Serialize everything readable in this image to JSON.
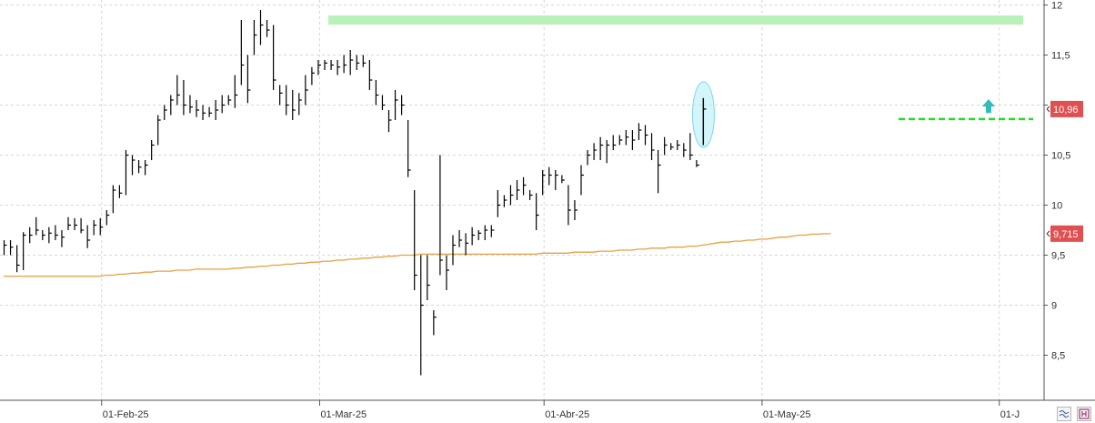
{
  "chart_data": {
    "type": "ohlc",
    "title": "",
    "xlabel": "",
    "ylabel": "",
    "ylim": [
      8.05,
      12.05
    ],
    "y_ticks": [
      "12",
      "11,5",
      "11",
      "10,5",
      "10",
      "9,5",
      "9",
      "8,5"
    ],
    "y_tick_values": [
      12,
      11.5,
      11,
      10.5,
      10,
      9.5,
      9,
      8.5
    ],
    "x_ticks": [
      "01-Feb-25",
      "01-Mar-25",
      "01-Abr-25",
      "01-May-25",
      "01-J"
    ],
    "x_tick_index": [
      15,
      49,
      84,
      118,
      155
    ],
    "grid": true,
    "colors": {
      "price_bar": "#000000",
      "moving_average": "#e8a040",
      "resistance_band": "#b8f2b8",
      "support_line": "#22dd22",
      "price_tag": "#e05050",
      "highlight_ellipse": "#b0eef8",
      "arrow": "#33bbbb",
      "grid": "#d6d6d6",
      "axis": "#555555"
    },
    "price_tags": [
      {
        "label": "10,96",
        "value": 10.96
      },
      {
        "label": "9,715",
        "value": 9.715
      }
    ],
    "resistance_band": {
      "from": 11.85,
      "to": 11.95
    },
    "support_line": {
      "value": 10.86
    },
    "bars": [
      {
        "h": 9.65,
        "l": 9.5,
        "c": 9.6
      },
      {
        "h": 9.65,
        "l": 9.5,
        "c": 9.58
      },
      {
        "h": 9.6,
        "l": 9.33,
        "c": 9.4
      },
      {
        "h": 9.73,
        "l": 9.35,
        "c": 9.7
      },
      {
        "h": 9.78,
        "l": 9.62,
        "c": 9.7
      },
      {
        "h": 9.88,
        "l": 9.7,
        "c": 9.75
      },
      {
        "h": 9.75,
        "l": 9.65,
        "c": 9.7
      },
      {
        "h": 9.78,
        "l": 9.62,
        "c": 9.72
      },
      {
        "h": 9.8,
        "l": 9.65,
        "c": 9.7
      },
      {
        "h": 9.75,
        "l": 9.58,
        "c": 9.68
      },
      {
        "h": 9.88,
        "l": 9.75,
        "c": 9.8
      },
      {
        "h": 9.87,
        "l": 9.75,
        "c": 9.8
      },
      {
        "h": 9.87,
        "l": 9.72,
        "c": 9.75
      },
      {
        "h": 9.8,
        "l": 9.57,
        "c": 9.65
      },
      {
        "h": 9.85,
        "l": 9.7,
        "c": 9.8
      },
      {
        "h": 9.87,
        "l": 9.7,
        "c": 9.78
      },
      {
        "h": 9.95,
        "l": 9.8,
        "c": 9.9
      },
      {
        "h": 10.2,
        "l": 9.92,
        "c": 10.15
      },
      {
        "h": 10.2,
        "l": 10.07,
        "c": 10.12
      },
      {
        "h": 10.55,
        "l": 10.1,
        "c": 10.5
      },
      {
        "h": 10.5,
        "l": 10.3,
        "c": 10.45
      },
      {
        "h": 10.45,
        "l": 10.32,
        "c": 10.38
      },
      {
        "h": 10.45,
        "l": 10.3,
        "c": 10.4
      },
      {
        "h": 10.65,
        "l": 10.45,
        "c": 10.6
      },
      {
        "h": 10.9,
        "l": 10.6,
        "c": 10.85
      },
      {
        "h": 11.0,
        "l": 10.85,
        "c": 10.95
      },
      {
        "h": 11.1,
        "l": 10.9,
        "c": 11.05
      },
      {
        "h": 11.3,
        "l": 11.0,
        "c": 11.1
      },
      {
        "h": 11.25,
        "l": 10.9,
        "c": 11.0
      },
      {
        "h": 11.1,
        "l": 10.92,
        "c": 10.98
      },
      {
        "h": 11.05,
        "l": 10.88,
        "c": 10.95
      },
      {
        "h": 11.0,
        "l": 10.85,
        "c": 10.92
      },
      {
        "h": 10.98,
        "l": 10.88,
        "c": 10.92
      },
      {
        "h": 11.05,
        "l": 10.85,
        "c": 10.95
      },
      {
        "h": 11.1,
        "l": 10.92,
        "c": 11.0
      },
      {
        "h": 11.1,
        "l": 11.0,
        "c": 11.05
      },
      {
        "h": 11.3,
        "l": 10.97,
        "c": 11.1
      },
      {
        "h": 11.85,
        "l": 11.2,
        "c": 11.4
      },
      {
        "h": 11.5,
        "l": 11.02,
        "c": 11.15
      },
      {
        "h": 11.85,
        "l": 11.5,
        "c": 11.7
      },
      {
        "h": 11.95,
        "l": 11.6,
        "c": 11.8
      },
      {
        "h": 11.85,
        "l": 11.68,
        "c": 11.75
      },
      {
        "h": 11.8,
        "l": 11.15,
        "c": 11.25
      },
      {
        "h": 11.2,
        "l": 11.0,
        "c": 11.12
      },
      {
        "h": 11.2,
        "l": 10.9,
        "c": 11.0
      },
      {
        "h": 11.15,
        "l": 10.85,
        "c": 10.95
      },
      {
        "h": 11.12,
        "l": 10.9,
        "c": 11.05
      },
      {
        "h": 11.3,
        "l": 11.0,
        "c": 11.15
      },
      {
        "h": 11.38,
        "l": 11.2,
        "c": 11.32
      },
      {
        "h": 11.45,
        "l": 11.3,
        "c": 11.4
      },
      {
        "h": 11.45,
        "l": 11.35,
        "c": 11.42
      },
      {
        "h": 11.45,
        "l": 11.35,
        "c": 11.4
      },
      {
        "h": 11.45,
        "l": 11.3,
        "c": 11.38
      },
      {
        "h": 11.5,
        "l": 11.32,
        "c": 11.4
      },
      {
        "h": 11.55,
        "l": 11.3,
        "c": 11.45
      },
      {
        "h": 11.5,
        "l": 11.35,
        "c": 11.42
      },
      {
        "h": 11.5,
        "l": 11.38,
        "c": 11.42
      },
      {
        "h": 11.45,
        "l": 11.15,
        "c": 11.25
      },
      {
        "h": 11.25,
        "l": 11.0,
        "c": 11.1
      },
      {
        "h": 11.1,
        "l": 10.95,
        "c": 11.0
      },
      {
        "h": 10.95,
        "l": 10.73,
        "c": 10.85
      },
      {
        "h": 11.15,
        "l": 10.85,
        "c": 11.05
      },
      {
        "h": 11.1,
        "l": 10.9,
        "c": 11.0
      },
      {
        "h": 10.85,
        "l": 10.28,
        "c": 10.35
      },
      {
        "h": 10.15,
        "l": 9.15,
        "c": 9.3
      },
      {
        "h": 9.5,
        "l": 8.3,
        "c": 9.0
      },
      {
        "h": 9.5,
        "l": 9.05,
        "c": 9.2
      },
      {
        "h": 8.95,
        "l": 8.7,
        "c": 8.88
      },
      {
        "h": 10.5,
        "l": 9.3,
        "c": 9.45
      },
      {
        "h": 9.5,
        "l": 9.15,
        "c": 9.35
      },
      {
        "h": 9.7,
        "l": 9.4,
        "c": 9.6
      },
      {
        "h": 9.75,
        "l": 9.58,
        "c": 9.65
      },
      {
        "h": 9.72,
        "l": 9.5,
        "c": 9.62
      },
      {
        "h": 9.78,
        "l": 9.6,
        "c": 9.7
      },
      {
        "h": 9.75,
        "l": 9.65,
        "c": 9.72
      },
      {
        "h": 9.8,
        "l": 9.65,
        "c": 9.75
      },
      {
        "h": 9.8,
        "l": 9.68,
        "c": 9.75
      },
      {
        "h": 10.15,
        "l": 9.88,
        "c": 10.0
      },
      {
        "h": 10.1,
        "l": 9.98,
        "c": 10.05
      },
      {
        "h": 10.2,
        "l": 10.0,
        "c": 10.1
      },
      {
        "h": 10.25,
        "l": 10.05,
        "c": 10.15
      },
      {
        "h": 10.28,
        "l": 10.1,
        "c": 10.2
      },
      {
        "h": 10.15,
        "l": 10.05,
        "c": 10.1
      },
      {
        "h": 10.12,
        "l": 9.75,
        "c": 9.9
      },
      {
        "h": 10.35,
        "l": 10.1,
        "c": 10.3
      },
      {
        "h": 10.38,
        "l": 10.2,
        "c": 10.3
      },
      {
        "h": 10.35,
        "l": 10.15,
        "c": 10.3
      },
      {
        "h": 10.3,
        "l": 10.22,
        "c": 10.25
      },
      {
        "h": 10.2,
        "l": 9.8,
        "c": 9.95
      },
      {
        "h": 10.05,
        "l": 9.85,
        "c": 9.95
      },
      {
        "h": 10.4,
        "l": 10.1,
        "c": 10.3
      },
      {
        "h": 10.55,
        "l": 10.4,
        "c": 10.5
      },
      {
        "h": 10.62,
        "l": 10.45,
        "c": 10.55
      },
      {
        "h": 10.68,
        "l": 10.45,
        "c": 10.6
      },
      {
        "h": 10.65,
        "l": 10.42,
        "c": 10.6
      },
      {
        "h": 10.7,
        "l": 10.55,
        "c": 10.6
      },
      {
        "h": 10.7,
        "l": 10.6,
        "c": 10.65
      },
      {
        "h": 10.75,
        "l": 10.6,
        "c": 10.68
      },
      {
        "h": 10.75,
        "l": 10.55,
        "c": 10.65
      },
      {
        "h": 10.82,
        "l": 10.65,
        "c": 10.75
      },
      {
        "h": 10.8,
        "l": 10.6,
        "c": 10.7
      },
      {
        "h": 10.72,
        "l": 10.45,
        "c": 10.55
      },
      {
        "h": 10.55,
        "l": 10.12,
        "c": 10.4
      },
      {
        "h": 10.68,
        "l": 10.5,
        "c": 10.6
      },
      {
        "h": 10.62,
        "l": 10.55,
        "c": 10.58
      },
      {
        "h": 10.65,
        "l": 10.55,
        "c": 10.6
      },
      {
        "h": 10.62,
        "l": 10.48,
        "c": 10.55
      },
      {
        "h": 10.72,
        "l": 10.45,
        "c": 10.5
      },
      {
        "h": 10.45,
        "l": 10.38,
        "c": 10.4
      },
      {
        "h": 11.07,
        "l": 10.6,
        "c": 10.96
      }
    ],
    "moving_average": [
      9.29,
      9.29,
      9.29,
      9.29,
      9.29,
      9.29,
      9.29,
      9.29,
      9.29,
      9.29,
      9.29,
      9.29,
      9.29,
      9.29,
      9.29,
      9.29,
      9.3,
      9.3,
      9.31,
      9.31,
      9.32,
      9.32,
      9.33,
      9.33,
      9.34,
      9.34,
      9.34,
      9.35,
      9.35,
      9.35,
      9.36,
      9.36,
      9.36,
      9.36,
      9.36,
      9.36,
      9.37,
      9.37,
      9.38,
      9.38,
      9.39,
      9.39,
      9.4,
      9.4,
      9.41,
      9.41,
      9.42,
      9.42,
      9.43,
      9.43,
      9.44,
      9.44,
      9.45,
      9.45,
      9.46,
      9.46,
      9.47,
      9.47,
      9.48,
      9.48,
      9.49,
      9.49,
      9.5,
      9.5,
      9.5,
      9.51,
      9.51,
      9.51,
      9.51,
      9.51,
      9.51,
      9.51,
      9.51,
      9.51,
      9.51,
      9.51,
      9.51,
      9.51,
      9.51,
      9.51,
      9.51,
      9.51,
      9.51,
      9.51,
      9.52,
      9.52,
      9.52,
      9.52,
      9.52,
      9.53,
      9.53,
      9.53,
      9.53,
      9.54,
      9.54,
      9.54,
      9.55,
      9.55,
      9.55,
      9.56,
      9.56,
      9.57,
      9.57,
      9.57,
      9.58,
      9.58,
      9.58,
      9.59,
      9.59,
      9.6,
      9.61,
      9.62,
      9.63,
      9.63,
      9.64,
      9.64,
      9.65,
      9.65,
      9.66,
      9.66,
      9.67,
      9.68,
      9.68,
      9.69,
      9.7,
      9.7,
      9.71,
      9.71,
      9.715,
      9.715
    ]
  }
}
